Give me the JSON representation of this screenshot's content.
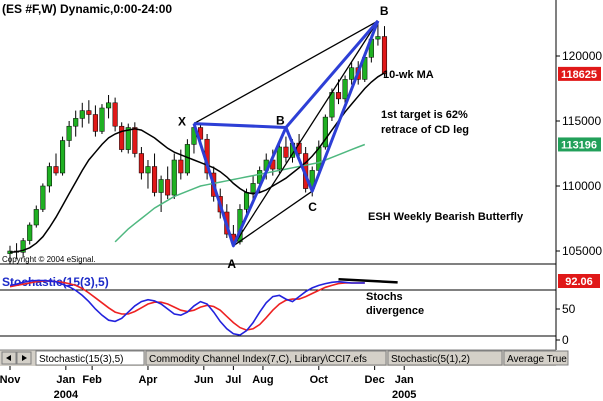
{
  "chart_data": {
    "type": "candlestick",
    "title": "(ES #F,W) Dynamic,0:00-24:00",
    "copyright": "Copyright © 2004 eSignal.",
    "price_axis": {
      "ylim": [
        104000,
        124000
      ],
      "ticks": [
        "120000",
        "115000",
        "110000",
        "105000"
      ]
    },
    "price_badges": [
      {
        "label": "118625",
        "value": 118625,
        "color": "#e01818"
      },
      {
        "label": "113196",
        "value": 113196,
        "color": "#22a05a"
      }
    ],
    "x_axis": {
      "labels": [
        {
          "text": "Nov",
          "t": 0
        },
        {
          "text": "Jan",
          "t": 8.5
        },
        {
          "text": "Feb",
          "t": 12.5
        },
        {
          "text": "Apr",
          "t": 21
        },
        {
          "text": "Jun",
          "t": 29.5
        },
        {
          "text": "Jul",
          "t": 34
        },
        {
          "text": "Aug",
          "t": 38.5
        },
        {
          "text": "Oct",
          "t": 47
        },
        {
          "text": "Dec",
          "t": 55.5
        },
        {
          "text": "Jan",
          "t": 60
        }
      ],
      "years": [
        {
          "text": "2004",
          "t": 8.5
        },
        {
          "text": "2005",
          "t": 60
        }
      ]
    },
    "candles": [
      [
        104800,
        105400,
        104000,
        105000
      ],
      [
        105000,
        105600,
        104400,
        104900
      ],
      [
        104900,
        106000,
        104500,
        105800
      ],
      [
        105800,
        107200,
        105500,
        107000
      ],
      [
        107000,
        108500,
        106800,
        108200
      ],
      [
        108200,
        110200,
        108000,
        110000
      ],
      [
        110000,
        111800,
        109500,
        111500
      ],
      [
        111500,
        112500,
        110800,
        111000
      ],
      [
        111000,
        113800,
        110800,
        113500
      ],
      [
        113500,
        115000,
        113000,
        114600
      ],
      [
        114600,
        115800,
        113800,
        115200
      ],
      [
        115200,
        116400,
        114500,
        115800
      ],
      [
        115800,
        116600,
        114800,
        115500
      ],
      [
        115500,
        116200,
        113800,
        114200
      ],
      [
        114200,
        116300,
        114000,
        116000
      ],
      [
        116000,
        117000,
        115200,
        116400
      ],
      [
        116400,
        116800,
        114200,
        114600
      ],
      [
        114600,
        114900,
        112600,
        112800
      ],
      [
        112800,
        114800,
        112500,
        114500
      ],
      [
        114500,
        114900,
        112200,
        112500
      ],
      [
        112500,
        113000,
        110500,
        111000
      ],
      [
        111000,
        112000,
        109800,
        111500
      ],
      [
        111500,
        112500,
        109200,
        109500
      ],
      [
        109500,
        110800,
        108000,
        110500
      ],
      [
        110500,
        111500,
        109000,
        109300
      ],
      [
        109300,
        112500,
        109000,
        112000
      ],
      [
        112000,
        112800,
        110500,
        111000
      ],
      [
        111000,
        113600,
        110800,
        113200
      ],
      [
        113200,
        114800,
        112500,
        114500
      ],
      [
        114500,
        114800,
        113000,
        113600
      ],
      [
        113600,
        114000,
        110500,
        111000
      ],
      [
        111000,
        111500,
        108800,
        109200
      ],
      [
        109200,
        109800,
        107500,
        108000
      ],
      [
        108000,
        108600,
        106000,
        106300
      ],
      [
        106300,
        107000,
        105300,
        105700
      ],
      [
        105700,
        108600,
        105500,
        108200
      ],
      [
        108200,
        109800,
        107800,
        109500
      ],
      [
        109500,
        110800,
        108800,
        110200
      ],
      [
        110200,
        111500,
        109500,
        111200
      ],
      [
        111200,
        112500,
        110500,
        112000
      ],
      [
        112000,
        112800,
        110800,
        111300
      ],
      [
        111300,
        113500,
        111000,
        113000
      ],
      [
        113000,
        113800,
        111800,
        112200
      ],
      [
        112200,
        113600,
        111800,
        113300
      ],
      [
        113300,
        114000,
        112000,
        112500
      ],
      [
        112500,
        113000,
        109500,
        109800
      ],
      [
        109800,
        111500,
        109200,
        111200
      ],
      [
        111200,
        113500,
        110800,
        113000
      ],
      [
        113000,
        115500,
        112800,
        115300
      ],
      [
        115300,
        117500,
        115000,
        117200
      ],
      [
        117200,
        118200,
        116300,
        116700
      ],
      [
        116700,
        118500,
        116400,
        118200
      ],
      [
        118200,
        119500,
        117800,
        119100
      ],
      [
        119100,
        119600,
        117800,
        118200
      ],
      [
        118200,
        120200,
        118000,
        119900
      ],
      [
        119900,
        121600,
        119500,
        121300
      ],
      [
        121300,
        122600,
        120800,
        121500
      ],
      [
        121500,
        122300,
        118400,
        118625
      ]
    ],
    "moving_average": {
      "label": "10-wk MA",
      "values": [
        104900,
        104950,
        105050,
        105250,
        105600,
        106100,
        106800,
        107600,
        108500,
        109400,
        110300,
        111200,
        112000,
        112600,
        113200,
        113700,
        114000,
        114200,
        114300,
        114400,
        114300,
        114000,
        113700,
        113300,
        112900,
        112600,
        112400,
        112200,
        112000,
        111800,
        111600,
        111400,
        111100,
        110700,
        110200,
        109800,
        109500,
        109400,
        109500,
        109700,
        110000,
        110300,
        110600,
        111000,
        111400,
        111800,
        112300,
        112900,
        113600,
        114300,
        115000,
        115700,
        116300,
        116900,
        117500,
        118000,
        118400,
        118700
      ]
    },
    "slow_moving_average": {
      "values": [
        null,
        null,
        null,
        null,
        null,
        null,
        null,
        null,
        null,
        null,
        null,
        null,
        null,
        null,
        null,
        null,
        105700,
        106200,
        106700,
        107100,
        107500,
        107900,
        108300,
        108600,
        108900,
        109200,
        109400,
        109600,
        109800,
        110000,
        110100,
        110200,
        110300,
        110400,
        110500,
        110600,
        110700,
        110800,
        110900,
        111000,
        111100,
        111200,
        111300,
        111400,
        111500,
        111600,
        111700,
        111800,
        112000,
        112200,
        112400,
        112600,
        112800,
        113000,
        113196,
        null,
        null,
        null
      ]
    },
    "pattern": {
      "name": "ESH Weekly Bearish Butterfly",
      "points": [
        {
          "label": "X",
          "t": 28,
          "value": 114800
        },
        {
          "label": "A",
          "t": 34,
          "value": 105400
        },
        {
          "label": "B",
          "t": 42,
          "value": 114500
        },
        {
          "label": "C",
          "t": 46,
          "value": 109600
        },
        {
          "label": "B",
          "t": 56,
          "value": 122700
        }
      ]
    },
    "annotations": [
      {
        "id": "ma",
        "text": "10-wk MA"
      },
      {
        "id": "target1",
        "text": "1st target is 62%"
      },
      {
        "id": "target2",
        "text": "retrace of CD leg"
      },
      {
        "id": "pattern",
        "text": "ESH Weekly Bearish Butterfly"
      },
      {
        "id": "div1",
        "text": "Stochs"
      },
      {
        "id": "div2",
        "text": "divergence"
      }
    ],
    "stochastic": {
      "title": "Stochastic(15(3),5)",
      "value_label": "92.06",
      "ylim": [
        0,
        100
      ],
      "ticks": [
        "50",
        "0"
      ],
      "k": [
        88,
        90,
        93,
        95,
        96,
        96,
        95,
        94,
        90,
        86,
        80,
        72,
        62,
        50,
        40,
        32,
        30,
        35,
        45,
        55,
        62,
        65,
        63,
        58,
        50,
        42,
        40,
        45,
        55,
        62,
        58,
        45,
        30,
        18,
        10,
        8,
        15,
        28,
        45,
        60,
        70,
        72,
        66,
        62,
        70,
        78,
        84,
        88,
        91,
        93,
        94,
        93,
        92,
        92,
        92.06,
        null,
        null,
        null
      ],
      "d": [
        86,
        88,
        90,
        92,
        94,
        95,
        95,
        94,
        93,
        91,
        88,
        83,
        76,
        68,
        60,
        52,
        45,
        42,
        42,
        46,
        52,
        58,
        61,
        61,
        58,
        53,
        48,
        46,
        48,
        53,
        56,
        54,
        48,
        38,
        28,
        20,
        16,
        18,
        25,
        36,
        48,
        58,
        64,
        66,
        66,
        70,
        75,
        80,
        85,
        88,
        91,
        92,
        92,
        92,
        92,
        null,
        null,
        null
      ]
    },
    "tabs": [
      "Stochastic(15(3),5)",
      "Commodity Channel Index(7,C), Library\\CCI7.efs",
      "Stochastic(5(1),2)",
      "Average True"
    ],
    "colors": {
      "bull": "#1fb022",
      "bear": "#e01818",
      "pattern": "#2d3fd6",
      "ma": "#000000",
      "slow_ma": "#4fb880",
      "stoch_k": "#2222dd",
      "stoch_d": "#ee2222"
    }
  }
}
